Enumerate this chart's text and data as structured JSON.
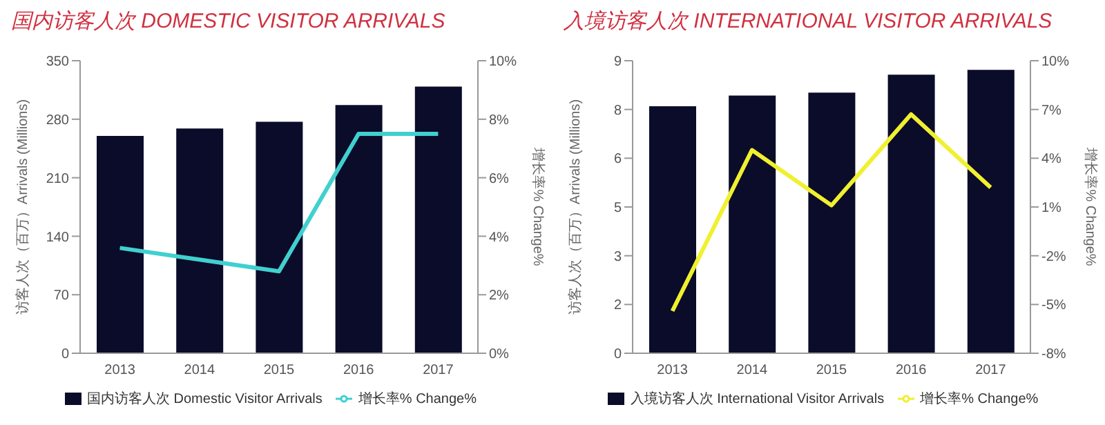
{
  "chart_data": [
    {
      "type": "bar",
      "title": "国内访客人次 DOMESTIC VISITOR ARRIVALS",
      "ylabel": "访客人次（百万）Arrivals (Millions)",
      "y2label": "增长率% Change%",
      "categories": [
        "2013",
        "2014",
        "2015",
        "2016",
        "2017"
      ],
      "series": [
        {
          "name": "国内访客人次 Domestic Visitor Arrivals",
          "color": "#0b0b2a",
          "values": [
            260,
            269,
            277,
            297,
            319
          ]
        },
        {
          "name": "增长率% Change%",
          "type": "line",
          "axis": "y2",
          "color": "#40d0d0",
          "values": [
            3.6,
            3.2,
            2.8,
            7.5,
            7.5
          ]
        }
      ],
      "ylim": [
        0,
        350
      ],
      "yticks": [
        0,
        70,
        140,
        210,
        280,
        350
      ],
      "y2lim": [
        0,
        10
      ],
      "y2ticks": [
        {
          "value": 0,
          "label": "0%"
        },
        {
          "value": 2,
          "label": "2%"
        },
        {
          "value": 4,
          "label": "4%"
        },
        {
          "value": 6,
          "label": "6%"
        },
        {
          "value": 8,
          "label": "8%"
        },
        {
          "value": 10,
          "label": "10%"
        }
      ],
      "legend": "bottom",
      "marker": "none"
    },
    {
      "type": "bar",
      "title": "入境访客人次 INTERNATIONAL VISITOR ARRIVALS",
      "ylabel": "访客人次（百万）Arrivals (Millions)",
      "y2label": "增长率% Change%",
      "categories": [
        "2013",
        "2014",
        "2015",
        "2016",
        "2017"
      ],
      "series": [
        {
          "name": "入境访客人次 International Visitor Arrivals",
          "color": "#0b0b2a",
          "values": [
            7.6,
            7.93,
            8.02,
            8.57,
            8.72
          ]
        },
        {
          "name": "增长率% Change%",
          "type": "line",
          "axis": "y2",
          "color": "#f0f030",
          "values": [
            -5.4,
            4.5,
            1.1,
            6.7,
            2.2
          ]
        }
      ],
      "ylim": [
        0,
        9
      ],
      "yticks": [
        0,
        {
          "value": 1.5,
          "label": "2"
        },
        3,
        {
          "value": 4.5,
          "label": "5"
        },
        6,
        {
          "value": 7.5,
          "label": "8"
        },
        9
      ],
      "y2lim": [
        -8,
        10
      ],
      "y2ticks": [
        {
          "value": -8,
          "label": "-8%"
        },
        {
          "value": -5,
          "label": "-5%"
        },
        {
          "value": -2,
          "label": "-2%"
        },
        {
          "value": 1,
          "label": "1%"
        },
        {
          "value": 4,
          "label": "4%"
        },
        {
          "value": 7,
          "label": "7%"
        },
        {
          "value": 10,
          "label": "10%"
        }
      ],
      "legend": "bottom",
      "marker": "none"
    }
  ]
}
